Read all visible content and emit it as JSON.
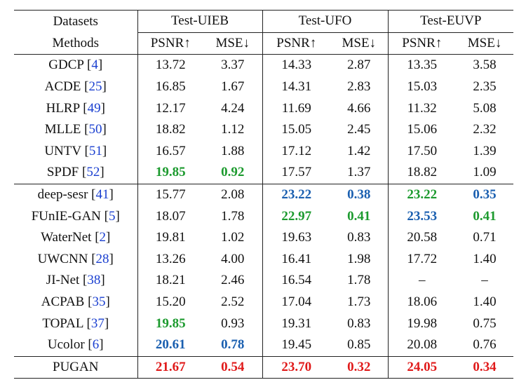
{
  "header": {
    "datasets_label": "Datasets",
    "methods_label": "Methods",
    "datasets": [
      "Test-UIEB",
      "Test-UFO",
      "Test-EUVP"
    ],
    "metrics": [
      "PSNR↑",
      "MSE↓"
    ]
  },
  "colors": {
    "best": "#e01a1a",
    "second": "#1a5fb0",
    "third": "#1c9a2e",
    "ref": "#1a3fd0"
  },
  "groups": [
    [
      {
        "name": "GDCP",
        "ref": "4",
        "cells": [
          [
            "13.72",
            ""
          ],
          [
            "3.37",
            ""
          ],
          [
            "14.33",
            ""
          ],
          [
            "2.87",
            ""
          ],
          [
            "13.35",
            ""
          ],
          [
            "3.58",
            ""
          ]
        ]
      },
      {
        "name": "ACDE",
        "ref": "25",
        "cells": [
          [
            "16.85",
            ""
          ],
          [
            "1.67",
            ""
          ],
          [
            "14.31",
            ""
          ],
          [
            "2.83",
            ""
          ],
          [
            "15.03",
            ""
          ],
          [
            "2.35",
            ""
          ]
        ]
      },
      {
        "name": "HLRP",
        "ref": "49",
        "cells": [
          [
            "12.17",
            ""
          ],
          [
            "4.24",
            ""
          ],
          [
            "11.69",
            ""
          ],
          [
            "4.66",
            ""
          ],
          [
            "11.32",
            ""
          ],
          [
            "5.08",
            ""
          ]
        ]
      },
      {
        "name": "MLLE",
        "ref": "50",
        "cells": [
          [
            "18.82",
            ""
          ],
          [
            "1.12",
            ""
          ],
          [
            "15.05",
            ""
          ],
          [
            "2.45",
            ""
          ],
          [
            "15.06",
            ""
          ],
          [
            "2.32",
            ""
          ]
        ]
      },
      {
        "name": "UNTV",
        "ref": "51",
        "cells": [
          [
            "16.57",
            ""
          ],
          [
            "1.88",
            ""
          ],
          [
            "17.12",
            ""
          ],
          [
            "1.42",
            ""
          ],
          [
            "17.50",
            ""
          ],
          [
            "1.39",
            ""
          ]
        ]
      },
      {
        "name": "SPDF",
        "ref": "52",
        "cells": [
          [
            "19.85",
            "green"
          ],
          [
            "0.92",
            "green"
          ],
          [
            "17.57",
            ""
          ],
          [
            "1.37",
            ""
          ],
          [
            "18.82",
            ""
          ],
          [
            "1.09",
            ""
          ]
        ]
      }
    ],
    [
      {
        "name": "deep-sesr",
        "ref": "41",
        "cells": [
          [
            "15.77",
            ""
          ],
          [
            "2.08",
            ""
          ],
          [
            "23.22",
            "blue"
          ],
          [
            "0.38",
            "blue"
          ],
          [
            "23.22",
            "green"
          ],
          [
            "0.35",
            "blue"
          ]
        ]
      },
      {
        "name": "FUnIE-GAN",
        "ref": "5",
        "cells": [
          [
            "18.07",
            ""
          ],
          [
            "1.78",
            ""
          ],
          [
            "22.97",
            "green"
          ],
          [
            "0.41",
            "green"
          ],
          [
            "23.53",
            "blue"
          ],
          [
            "0.41",
            "green"
          ]
        ]
      },
      {
        "name": "WaterNet",
        "ref": "2",
        "cells": [
          [
            "19.81",
            ""
          ],
          [
            "1.02",
            ""
          ],
          [
            "19.63",
            ""
          ],
          [
            "0.83",
            ""
          ],
          [
            "20.58",
            ""
          ],
          [
            "0.71",
            ""
          ]
        ]
      },
      {
        "name": "UWCNN",
        "ref": "28",
        "cells": [
          [
            "13.26",
            ""
          ],
          [
            "4.00",
            ""
          ],
          [
            "16.41",
            ""
          ],
          [
            "1.98",
            ""
          ],
          [
            "17.72",
            ""
          ],
          [
            "1.40",
            ""
          ]
        ]
      },
      {
        "name": "JI-Net",
        "ref": "38",
        "cells": [
          [
            "18.21",
            ""
          ],
          [
            "2.46",
            ""
          ],
          [
            "16.54",
            ""
          ],
          [
            "1.78",
            ""
          ],
          [
            "–",
            ""
          ],
          [
            "–",
            ""
          ]
        ]
      },
      {
        "name": "ACPAB",
        "ref": "35",
        "cells": [
          [
            "15.20",
            ""
          ],
          [
            "2.52",
            ""
          ],
          [
            "17.04",
            ""
          ],
          [
            "1.73",
            ""
          ],
          [
            "18.06",
            ""
          ],
          [
            "1.40",
            ""
          ]
        ]
      },
      {
        "name": "TOPAL",
        "ref": "37",
        "cells": [
          [
            "19.85",
            "green"
          ],
          [
            "0.93",
            ""
          ],
          [
            "19.31",
            ""
          ],
          [
            "0.83",
            ""
          ],
          [
            "19.98",
            ""
          ],
          [
            "0.75",
            ""
          ]
        ]
      },
      {
        "name": "Ucolor",
        "ref": "6",
        "cells": [
          [
            "20.61",
            "blue"
          ],
          [
            "0.78",
            "blue"
          ],
          [
            "19.45",
            ""
          ],
          [
            "0.85",
            ""
          ],
          [
            "20.08",
            ""
          ],
          [
            "0.76",
            ""
          ]
        ]
      }
    ],
    [
      {
        "name": "PUGAN",
        "ref": "",
        "cells": [
          [
            "21.67",
            "red"
          ],
          [
            "0.54",
            "red"
          ],
          [
            "23.70",
            "red"
          ],
          [
            "0.32",
            "red"
          ],
          [
            "24.05",
            "red"
          ],
          [
            "0.34",
            "red"
          ]
        ]
      }
    ]
  ]
}
